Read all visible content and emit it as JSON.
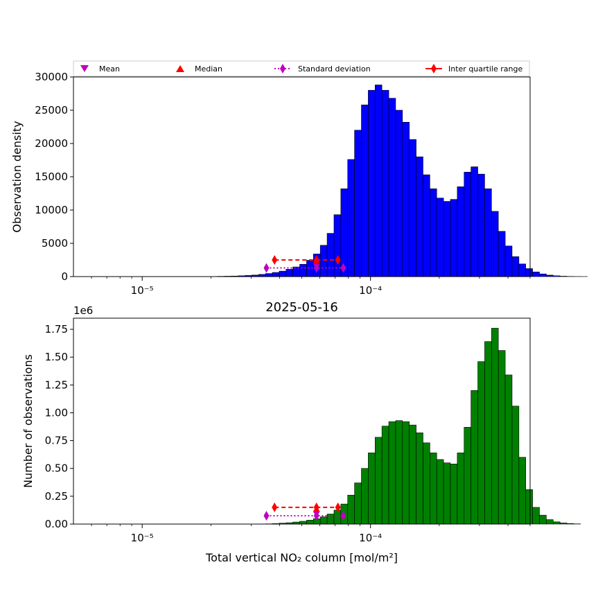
{
  "legend": {
    "mean": "Mean",
    "median": "Median",
    "std": "Standard deviation",
    "iqr": "Inter quartile range"
  },
  "colors": {
    "top_bars": "#0000ff",
    "bottom_bars": "#008000",
    "mean": "#bf00bf",
    "median": "#ff0000",
    "edge": "#000000"
  },
  "chart_data": [
    {
      "type": "bar",
      "xscale": "log",
      "xlim": [
        5e-06,
        0.0005
      ],
      "ylim": [
        0,
        30000
      ],
      "title": "",
      "xlabel": "",
      "ylabel": "Observation density",
      "x_tick_labels": [
        "10⁻⁵",
        "10⁻⁴"
      ],
      "x_ticks": [
        1e-05,
        0.0001
      ],
      "y_ticks": [
        0,
        5000,
        10000,
        15000,
        20000,
        25000,
        30000
      ],
      "y_tick_labels": [
        "0",
        "5000",
        "10000",
        "15000",
        "20000",
        "25000",
        "30000"
      ],
      "bin_edges_log10": {
        "start": -5.3,
        "step": 0.03,
        "count": 100
      },
      "values": [
        0,
        0,
        0,
        0,
        0,
        0,
        0,
        0,
        0,
        0,
        0,
        0,
        0,
        0,
        0,
        0,
        0,
        0,
        0,
        0,
        20,
        40,
        60,
        80,
        120,
        170,
        230,
        330,
        460,
        620,
        820,
        1100,
        1450,
        1850,
        2450,
        3400,
        4700,
        6500,
        9300,
        13200,
        17600,
        22000,
        25800,
        28000,
        28800,
        28000,
        26800,
        25000,
        23200,
        20600,
        18000,
        15300,
        13200,
        11800,
        11300,
        11600,
        13500,
        15700,
        16500,
        15400,
        13200,
        9800,
        6800,
        4600,
        3000,
        1900,
        1200,
        700,
        400,
        220,
        120,
        60,
        30,
        15,
        8,
        0,
        0,
        0,
        0,
        0,
        0,
        0,
        0,
        0,
        0,
        0,
        0,
        0,
        0,
        0,
        0,
        0,
        0,
        0,
        0,
        0,
        0,
        0,
        0,
        0
      ],
      "markers": {
        "mean": {
          "x": 5.8e-05,
          "y": 1500
        },
        "median": {
          "x": 5.8e-05,
          "y": 2400
        },
        "std": {
          "x": [
            3.5e-05,
            5.8e-05,
            7.6e-05
          ],
          "y": 1300
        },
        "iqr": {
          "x": [
            3.8e-05,
            5.8e-05,
            7.2e-05
          ],
          "y": 2500
        }
      }
    },
    {
      "type": "bar",
      "xscale": "log",
      "xlim": [
        5e-06,
        0.0005
      ],
      "ylim": [
        0,
        1850000
      ],
      "title": "2025-05-16",
      "xlabel": "Total vertical NO₂ column [mol/m²]",
      "ylabel": "Number of observations",
      "offset_label": "1e6",
      "x_tick_labels": [
        "10⁻⁵",
        "10⁻⁴"
      ],
      "x_ticks": [
        1e-05,
        0.0001
      ],
      "y_ticks": [
        0,
        250000,
        500000,
        750000,
        1000000,
        1250000,
        1500000,
        1750000
      ],
      "y_tick_labels": [
        "0.00",
        "0.25",
        "0.50",
        "0.75",
        "1.00",
        "1.25",
        "1.50",
        "1.75"
      ],
      "bin_edges_log10": {
        "start": -5.3,
        "step": 0.03,
        "count": 100
      },
      "values": [
        0,
        0,
        0,
        0,
        0,
        0,
        0,
        0,
        0,
        0,
        0,
        0,
        0,
        0,
        0,
        0,
        0,
        0,
        0,
        0,
        0,
        0,
        0,
        0,
        0,
        0,
        0,
        0,
        2000,
        4000,
        8000,
        12000,
        18000,
        25000,
        35000,
        48000,
        65000,
        90000,
        125000,
        180000,
        260000,
        370000,
        500000,
        640000,
        780000,
        880000,
        920000,
        930000,
        920000,
        890000,
        820000,
        730000,
        640000,
        580000,
        550000,
        540000,
        640000,
        870000,
        1200000,
        1460000,
        1640000,
        1760000,
        1560000,
        1340000,
        1060000,
        600000,
        310000,
        150000,
        80000,
        40000,
        20000,
        10000,
        5000,
        2000,
        0,
        0,
        0,
        0,
        0,
        0,
        0,
        0,
        0,
        0,
        0,
        0,
        0,
        0,
        0,
        0,
        0,
        0,
        0,
        0,
        0,
        0,
        0,
        0,
        0,
        0
      ],
      "markers": {
        "mean": {
          "x": 5.8e-05,
          "y": 90000
        },
        "median": {
          "x": 5.8e-05,
          "y": 135000
        },
        "std": {
          "x": [
            3.5e-05,
            5.8e-05,
            7.6e-05
          ],
          "y": 75000
        },
        "iqr": {
          "x": [
            3.8e-05,
            5.8e-05,
            7.2e-05
          ],
          "y": 150000
        }
      }
    }
  ]
}
